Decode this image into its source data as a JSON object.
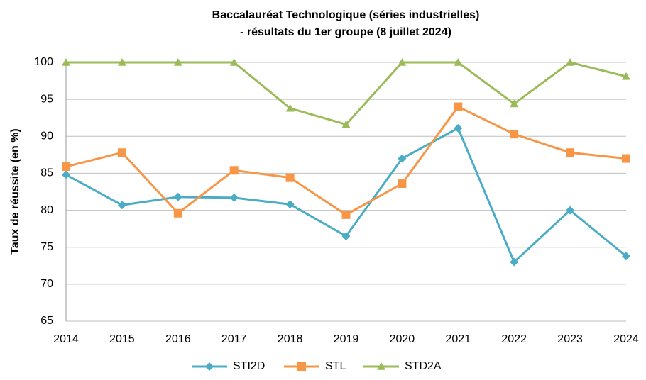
{
  "chart_data": {
    "type": "line",
    "title": [
      "Baccalauréat Technologique (séries industrielles)",
      "- résultats du 1er groupe (8 juillet 2024)"
    ],
    "y_label": "Taux de réussite (en %)",
    "categories": [
      "2014",
      "2015",
      "2016",
      "2017",
      "2018",
      "2019",
      "2020",
      "2021",
      "2022",
      "2023",
      "2024"
    ],
    "series": [
      {
        "name": "STI2D",
        "color": "#4bacc6",
        "marker": "diamond",
        "values": [
          84.8,
          80.7,
          81.8,
          81.7,
          80.8,
          76.5,
          87.0,
          91.1,
          73.0,
          80.0,
          73.8
        ]
      },
      {
        "name": "STL",
        "color": "#f79646",
        "marker": "square",
        "values": [
          85.9,
          87.8,
          79.6,
          85.4,
          84.4,
          79.4,
          83.6,
          94.0,
          90.3,
          87.8,
          87.0
        ]
      },
      {
        "name": "STD2A",
        "color": "#9bbb59",
        "marker": "triangle",
        "values": [
          100,
          100,
          100,
          100,
          93.8,
          91.6,
          100,
          100,
          94.4,
          100,
          98.1
        ]
      }
    ],
    "ylim": [
      65,
      100
    ],
    "yticks": [
      65,
      70,
      75,
      80,
      85,
      90,
      95,
      100
    ],
    "grid": true,
    "legend": "bottom"
  }
}
